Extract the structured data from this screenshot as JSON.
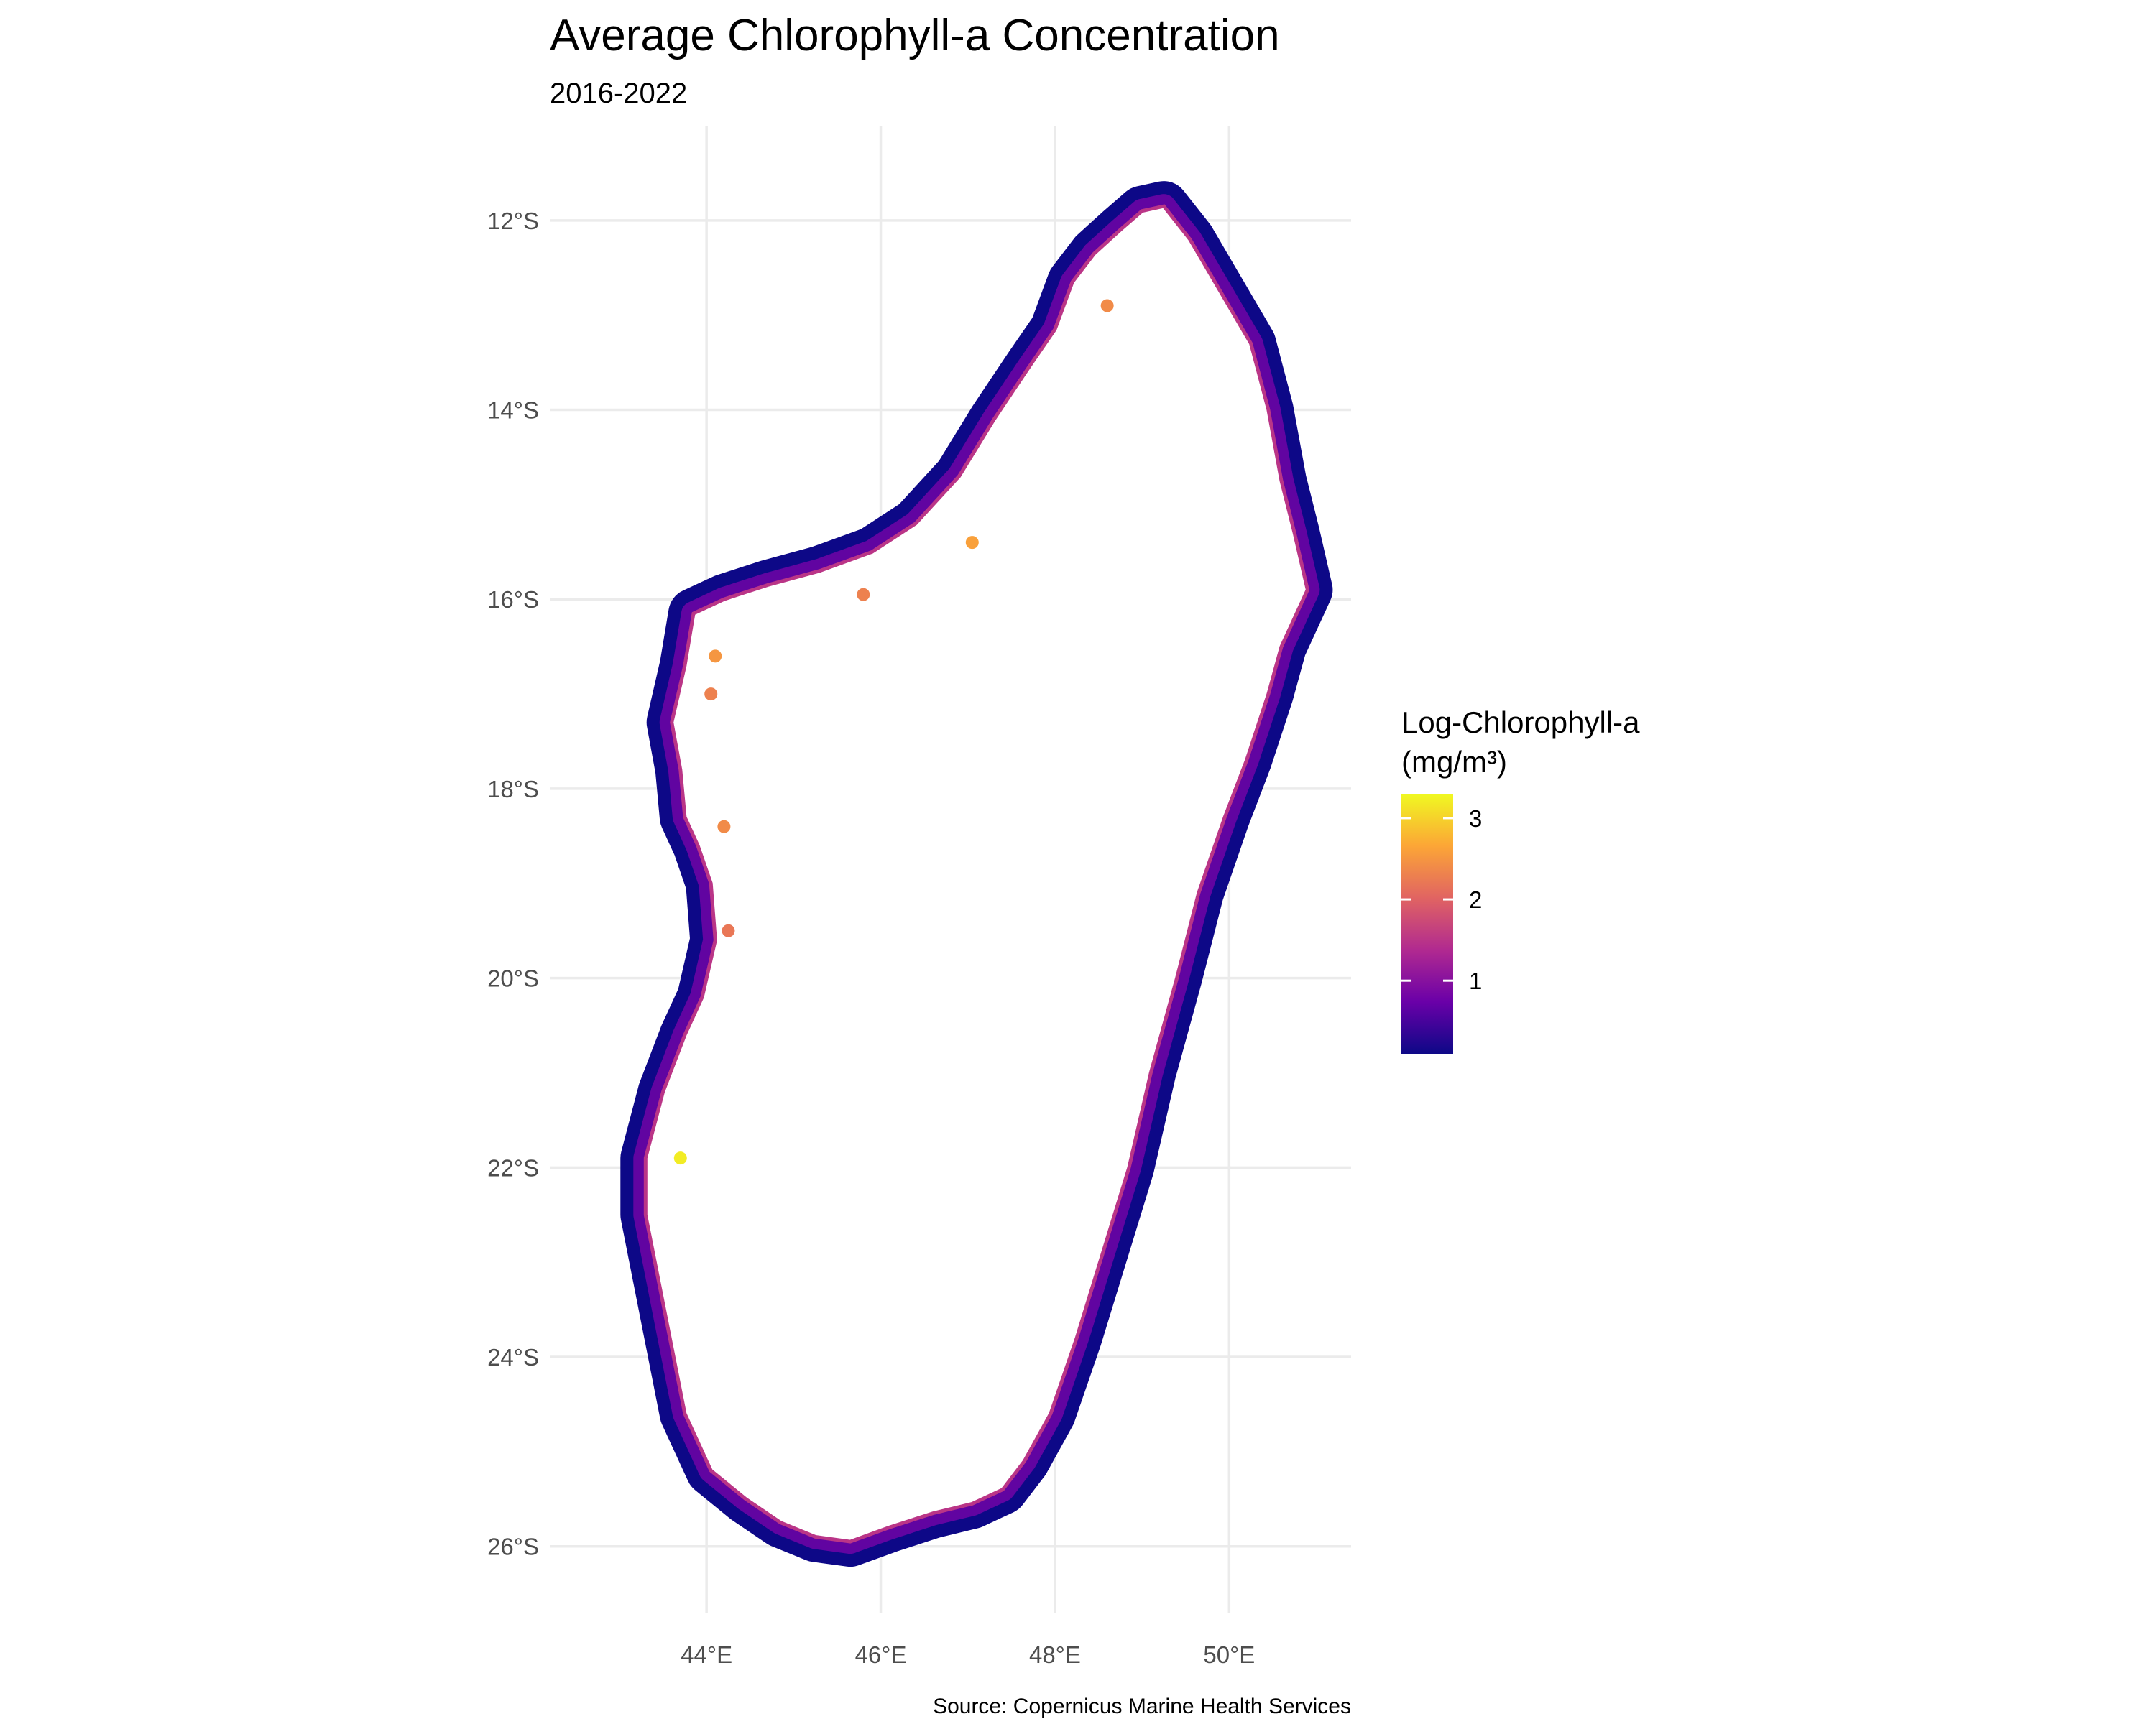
{
  "chart_data": {
    "type": "map",
    "title": "Average Chlorophyll-a Concentration",
    "subtitle": "2016-2022",
    "caption": "Source: Copernicus Marine Health Services",
    "x_axis": {
      "range": [
        42.2,
        51.4
      ],
      "ticks": [
        44,
        46,
        48,
        50
      ],
      "tick_labels": [
        "44°E",
        "46°E",
        "48°E",
        "50°E"
      ]
    },
    "y_axis": {
      "range": [
        -26.7,
        -11.0
      ],
      "ticks": [
        -12,
        -14,
        -16,
        -18,
        -20,
        -22,
        -24,
        -26
      ],
      "tick_labels": [
        "12°S",
        "14°S",
        "16°S",
        "18°S",
        "20°S",
        "22°S",
        "24°S",
        "26°S"
      ]
    },
    "grid": true,
    "legend": {
      "title_line1": "Log-Chlorophyll-a",
      "title_line2": "(mg/m³)",
      "placement": "right",
      "range": [
        0.1,
        3.3
      ],
      "ticks": [
        1,
        2,
        3
      ],
      "tick_labels": [
        "1",
        "2",
        "3"
      ],
      "colors": [
        "#0d0887",
        "#6a00a8",
        "#b12a90",
        "#e16462",
        "#fca636",
        "#f0f921"
      ]
    },
    "coastline": {
      "lon": [
        49.25,
        49.55,
        49.9,
        50.25,
        50.45,
        50.6,
        50.75,
        50.9,
        50.6,
        50.45,
        50.2,
        49.95,
        49.65,
        49.4,
        49.1,
        48.85,
        48.55,
        48.25,
        47.95,
        47.65,
        47.4,
        47.05,
        46.6,
        46.1,
        45.65,
        45.25,
        44.85,
        44.45,
        44.05,
        43.75,
        43.6,
        43.45,
        43.3,
        43.3,
        43.5,
        43.75,
        43.95,
        44.1,
        44.05,
        43.9,
        43.75,
        43.7,
        43.6,
        43.75,
        43.85,
        44.2,
        44.7,
        45.3,
        45.9,
        46.4,
        46.9,
        47.3,
        47.7,
        48.0,
        48.2,
        48.45,
        48.75,
        49.0,
        49.25
      ],
      "lat": [
        -11.85,
        -12.2,
        -12.75,
        -13.3,
        -14.0,
        -14.75,
        -15.3,
        -15.9,
        -16.5,
        -17.0,
        -17.7,
        -18.3,
        -19.1,
        -20.0,
        -21.0,
        -22.0,
        -22.9,
        -23.8,
        -24.6,
        -25.1,
        -25.4,
        -25.55,
        -25.65,
        -25.8,
        -25.95,
        -25.9,
        -25.75,
        -25.5,
        -25.2,
        -24.6,
        -23.9,
        -23.2,
        -22.5,
        -21.9,
        -21.2,
        -20.6,
        -20.2,
        -19.6,
        -19.0,
        -18.6,
        -18.3,
        -17.8,
        -17.3,
        -16.7,
        -16.15,
        -16.0,
        -15.85,
        -15.7,
        -15.5,
        -15.2,
        -14.7,
        -14.1,
        -13.55,
        -13.15,
        -12.65,
        -12.35,
        -12.1,
        -11.9,
        -11.85
      ]
    },
    "high_concentration_patches": [
      {
        "lon": 47.05,
        "lat": -15.4,
        "value": 2.6
      },
      {
        "lon": 48.6,
        "lat": -12.9,
        "value": 2.4
      },
      {
        "lon": 44.1,
        "lat": -16.6,
        "value": 2.5
      },
      {
        "lon": 44.05,
        "lat": -17.0,
        "value": 2.3
      },
      {
        "lon": 44.2,
        "lat": -18.4,
        "value": 2.4
      },
      {
        "lon": 44.25,
        "lat": -19.5,
        "value": 2.2
      },
      {
        "lon": 45.8,
        "lat": -15.95,
        "value": 2.3
      },
      {
        "lon": 43.7,
        "lat": -21.9,
        "value": 3.2
      }
    ]
  }
}
